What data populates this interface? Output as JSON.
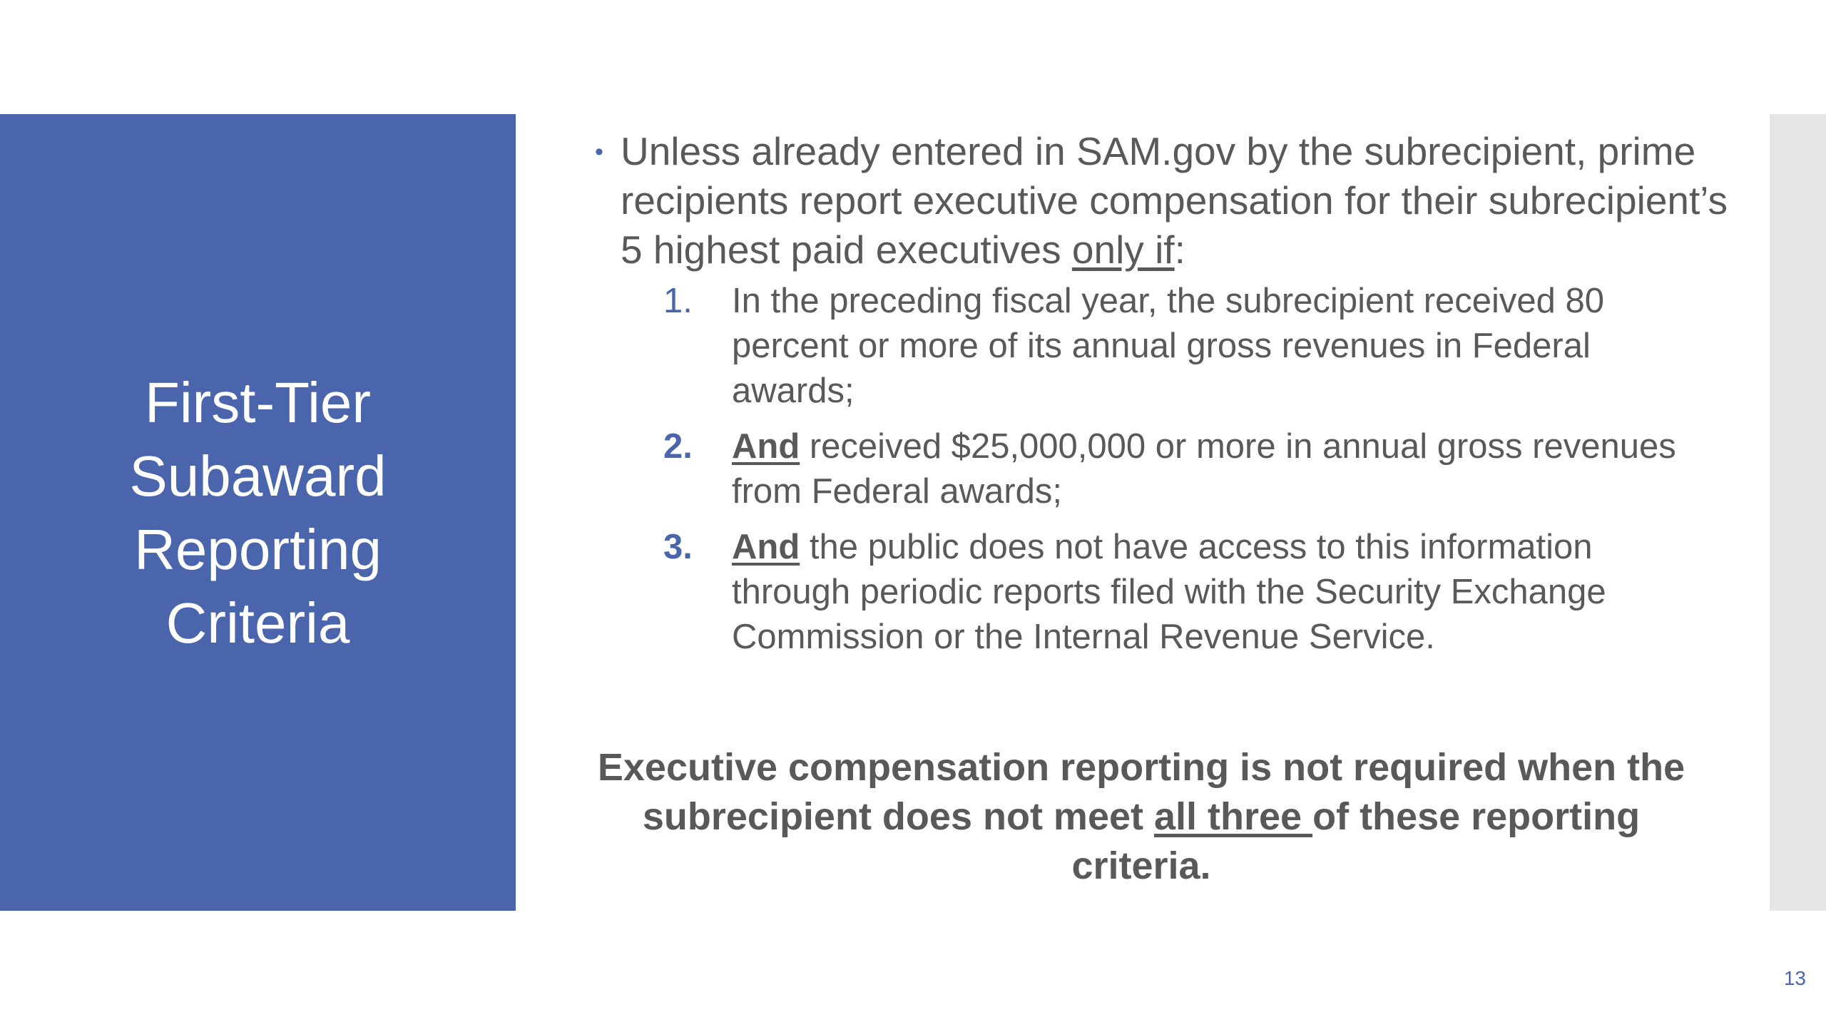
{
  "slide": {
    "title_lines": [
      "First-Tier",
      "Subaward",
      "Reporting",
      "Criteria"
    ],
    "colors": {
      "accent": "#4a65ab",
      "body_text": "#595959",
      "side_bar": "#e6e6e6"
    },
    "bullet": {
      "text_before": "Unless already entered in SAM.gov by the subrecipient, prime recipients report executive compensation for their subrecipient’s 5 highest paid executives ",
      "emphasis": "only if",
      "text_after": ":"
    },
    "criteria": [
      {
        "number": "1.",
        "lead": "",
        "text": "In the preceding fiscal year, the subrecipient received 80 percent or more of its annual gross revenues in Federal awards;"
      },
      {
        "number": "2.",
        "lead": "And",
        "text": " received $25,000,000 or more in annual gross revenues from Federal awards;"
      },
      {
        "number": "3.",
        "lead": "And",
        "text": " the public does not have access to this information through periodic reports filed with the Security Exchange Commission or the Internal Revenue Service."
      }
    ],
    "summary": {
      "before": "Executive compensation reporting is not required when the subrecipient does not meet ",
      "emphasis": "all three ",
      "after": "of these reporting criteria."
    },
    "page_number": "13"
  }
}
